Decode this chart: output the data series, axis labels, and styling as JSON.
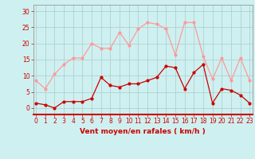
{
  "x": [
    0,
    1,
    2,
    3,
    4,
    5,
    6,
    7,
    8,
    9,
    10,
    11,
    12,
    13,
    14,
    15,
    16,
    17,
    18,
    19,
    20,
    21,
    22,
    23
  ],
  "wind_avg": [
    1.5,
    1,
    0,
    2,
    2,
    2,
    3,
    9.5,
    7,
    6.5,
    7.5,
    7.5,
    8.5,
    9.5,
    13,
    12.5,
    6,
    11,
    13.5,
    1.5,
    6,
    5.5,
    4,
    1.5
  ],
  "wind_gust": [
    8.5,
    6,
    10.5,
    13.5,
    15.5,
    15.5,
    20,
    18.5,
    18.5,
    23.5,
    19.5,
    24.5,
    26.5,
    26,
    24.5,
    16.5,
    26.5,
    26.5,
    16,
    9,
    15.5,
    8.5,
    15.5,
    8.5
  ],
  "avg_color": "#cc0000",
  "gust_color": "#ff9999",
  "bg_color": "#cff0f0",
  "grid_color": "#aacccc",
  "xlabel": "Vent moyen/en rafales ( km/h )",
  "xlabel_color": "#cc0000",
  "tick_color": "#cc0000",
  "yticks": [
    0,
    5,
    10,
    15,
    20,
    25,
    30
  ],
  "ylim": [
    -2,
    32
  ],
  "xlim": [
    -0.3,
    23.3
  ],
  "marker_size": 2.0,
  "linewidth": 0.9,
  "tick_fontsize": 5.5,
  "xlabel_fontsize": 6.5
}
